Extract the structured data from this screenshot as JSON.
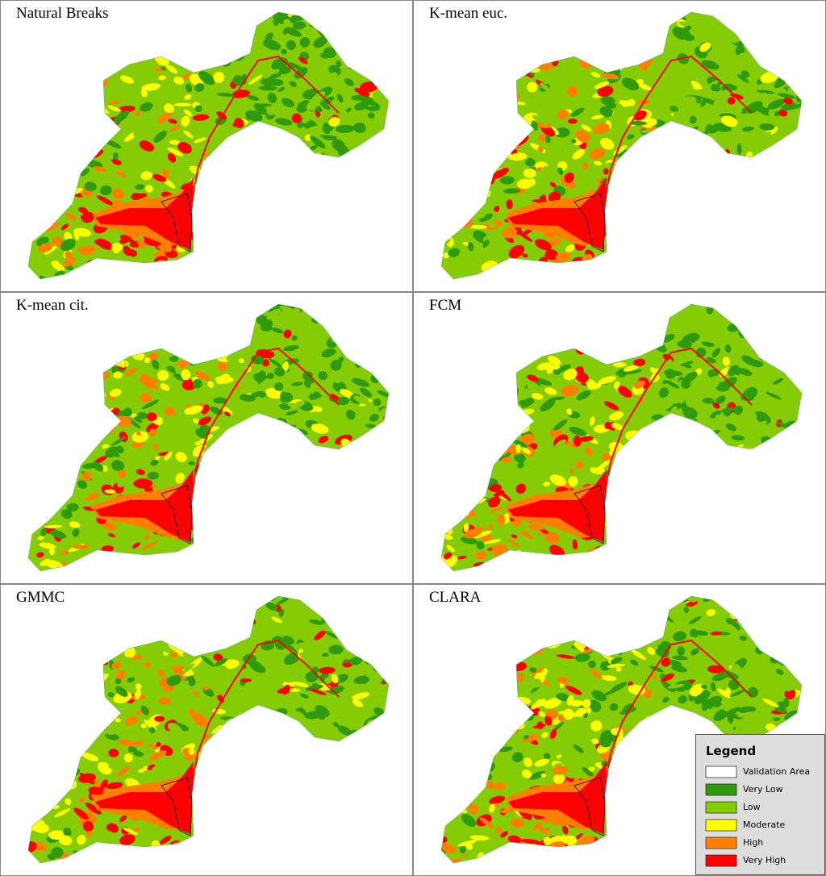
{
  "panels": [
    {
      "title": "Natural Breaks"
    },
    {
      "title": "K-mean euc."
    },
    {
      "title": "K-mean cit."
    },
    {
      "title": "FCM"
    },
    {
      "title": "GMMC"
    },
    {
      "title": "CLARA"
    }
  ],
  "legend": {
    "title": "Legend",
    "items": [
      {
        "label": "Validation Area",
        "color": "#ffffff"
      },
      {
        "label": "Very Low",
        "color": "#2f9a0c"
      },
      {
        "label": "Low",
        "color": "#86cc04"
      },
      {
        "label": "Moderate",
        "color": "#ffff00"
      },
      {
        "label": "High",
        "color": "#ff8000"
      },
      {
        "label": "Very High",
        "color": "#ff0000"
      }
    ]
  }
}
